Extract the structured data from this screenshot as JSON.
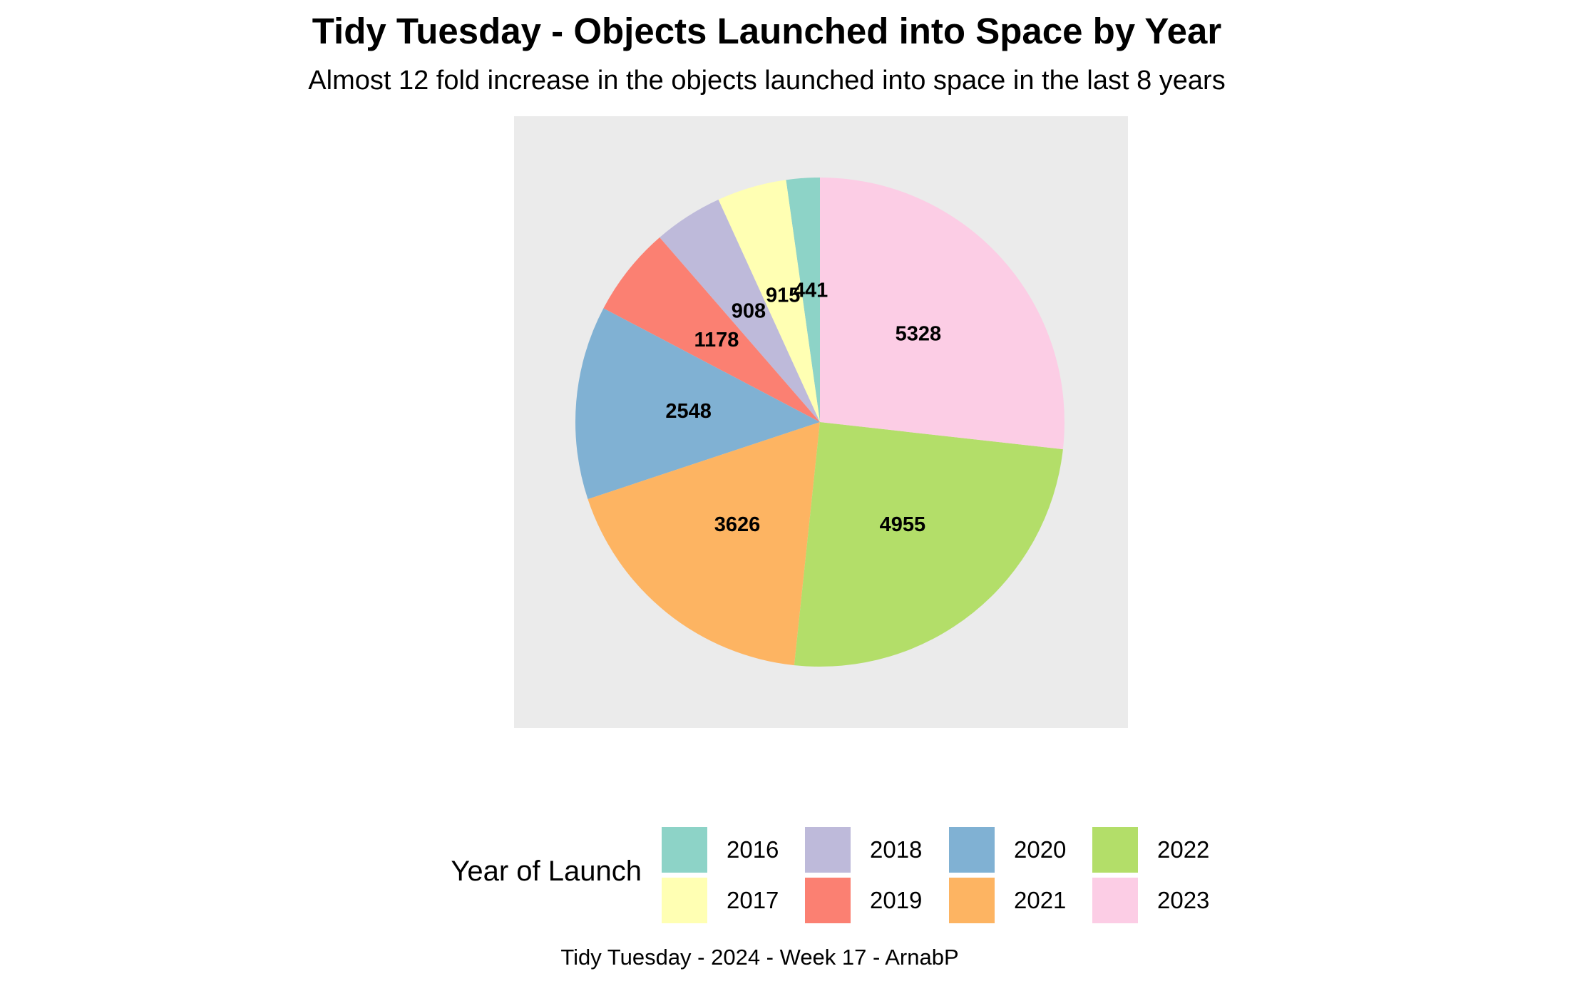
{
  "title": "Tidy Tuesday - Objects Launched into Space by Year",
  "subtitle": "Almost 12 fold increase in the objects launched into space in the last 8 years",
  "caption": "Tidy Tuesday - 2024 - Week 17 - ArnabP",
  "legend": {
    "title": "Year of Launch",
    "position": "bottom"
  },
  "colors": {
    "panel_background": "#EBEBEB",
    "text": "#000000",
    "slice_border": "#FFFFFF"
  },
  "chart_data": {
    "type": "pie",
    "title": "Tidy Tuesday - Objects Launched into Space by Year",
    "subtitle": "Almost 12 fold increase in the objects launched into space in the last 8 years",
    "legend_title": "Year of Launch",
    "legend_placement": "bottom",
    "start": "12 o'clock",
    "direction": "counterclockwise",
    "categories": [
      "2016",
      "2017",
      "2018",
      "2019",
      "2020",
      "2021",
      "2022",
      "2023"
    ],
    "values": [
      441,
      915,
      908,
      1178,
      2548,
      3626,
      4955,
      5328
    ],
    "labels": [
      "441",
      "915",
      "908",
      "1178",
      "2548",
      "3626",
      "4955",
      "5328"
    ],
    "colors": [
      "#8DD3C7",
      "#FFFFB3",
      "#BEBADA",
      "#FB8072",
      "#80B1D3",
      "#FDB462",
      "#B3DE69",
      "#FCCDE5"
    ]
  }
}
